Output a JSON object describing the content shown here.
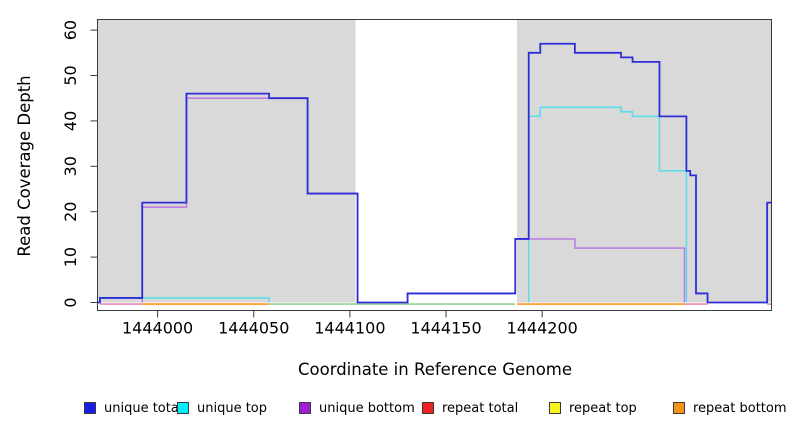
{
  "chart_data": {
    "type": "line",
    "subtype": "step-coverage-plot",
    "title": "",
    "xlabel": "Coordinate in Reference Genome",
    "ylabel": "Read Coverage Depth",
    "xlim": [
      1443969,
      1444319
    ],
    "ylim": [
      0,
      62
    ],
    "grid": false,
    "x_ticks": [
      1444000,
      1444050,
      1444100,
      1444150,
      1444200
    ],
    "y_ticks": [
      0,
      10,
      20,
      30,
      40,
      50,
      60
    ],
    "colors": {
      "axis": "#3a3a3a",
      "shade": "#d9d9d9",
      "tick_text": "#111111"
    },
    "shaded_regions": [
      {
        "from": 1443969,
        "to": 1444103
      },
      {
        "from": 1444187,
        "to": 1444319
      }
    ],
    "series": [
      {
        "name": "repeat total",
        "color": "#dd2222",
        "draw": false,
        "points": [
          [
            1443969,
            0
          ]
        ]
      },
      {
        "name": "repeat top",
        "color": "#f5f52a",
        "draw": false,
        "points": [
          [
            1443969,
            0
          ]
        ]
      },
      {
        "name": "repeat bottom",
        "color": "#ff951c",
        "draw": false,
        "points": [
          [
            1443969,
            0
          ]
        ]
      },
      {
        "name": "unique bottom",
        "color": "#c07fe3",
        "width": 1.6,
        "hide_zero_runs": true,
        "points": [
          [
            1443969,
            0
          ],
          [
            1443992,
            21
          ],
          [
            1444015,
            45
          ],
          [
            1444078,
            24
          ],
          [
            1444104,
            0
          ],
          [
            1444130,
            2
          ],
          [
            1444186,
            14
          ],
          [
            1444217,
            12
          ],
          [
            1444274,
            0
          ]
        ]
      },
      {
        "name": "unique top",
        "color": "#5cdde9",
        "width": 1.6,
        "hide_zero_runs": true,
        "points": [
          [
            1443969,
            0
          ],
          [
            1443970,
            1
          ],
          [
            1444058,
            0
          ],
          [
            1444193,
            41
          ],
          [
            1444199,
            43
          ],
          [
            1444241,
            42
          ],
          [
            1444247,
            41
          ],
          [
            1444261,
            29
          ],
          [
            1444275,
            0
          ]
        ]
      },
      {
        "name": "unique total",
        "color": "#2e2ed8",
        "width": 1.8,
        "hide_zero_runs": false,
        "points": [
          [
            1443969,
            0
          ],
          [
            1443970,
            1
          ],
          [
            1443992,
            22
          ],
          [
            1444015,
            46
          ],
          [
            1444058,
            45
          ],
          [
            1444078,
            24
          ],
          [
            1444104,
            0
          ],
          [
            1444130,
            2
          ],
          [
            1444186,
            14
          ],
          [
            1444193,
            55
          ],
          [
            1444199,
            57
          ],
          [
            1444217,
            55
          ],
          [
            1444241,
            54
          ],
          [
            1444247,
            53
          ],
          [
            1444261,
            41
          ],
          [
            1444275,
            29
          ],
          [
            1444277,
            28
          ],
          [
            1444280,
            2
          ],
          [
            1444286,
            0
          ],
          [
            1444317,
            22
          ]
        ]
      }
    ],
    "baseline_overplot_segments": [
      {
        "from": 1443970,
        "to": 1443992,
        "color": "#e78cba"
      },
      {
        "from": 1443992,
        "to": 1444058,
        "color": "#ff951c"
      },
      {
        "from": 1444058,
        "to": 1444186,
        "color": "#93d593"
      },
      {
        "from": 1444187,
        "to": 1444274,
        "color": "#ff951c"
      },
      {
        "from": 1444274,
        "to": 1444286,
        "color": "#e78cba"
      },
      {
        "from": 1444317,
        "to": 1444319,
        "color": "#e78cba"
      }
    ],
    "legend": [
      {
        "label": "unique total",
        "fill": "#1a1aee"
      },
      {
        "label": "unique top",
        "fill": "#00eeff"
      },
      {
        "label": "unique bottom",
        "fill": "#a21fd6"
      },
      {
        "label": "repeat total",
        "fill": "#ee2222"
      },
      {
        "label": "repeat top",
        "fill": "#f7f71f"
      },
      {
        "label": "repeat bottom",
        "fill": "#f79117"
      }
    ],
    "legend_position": "bottom"
  }
}
